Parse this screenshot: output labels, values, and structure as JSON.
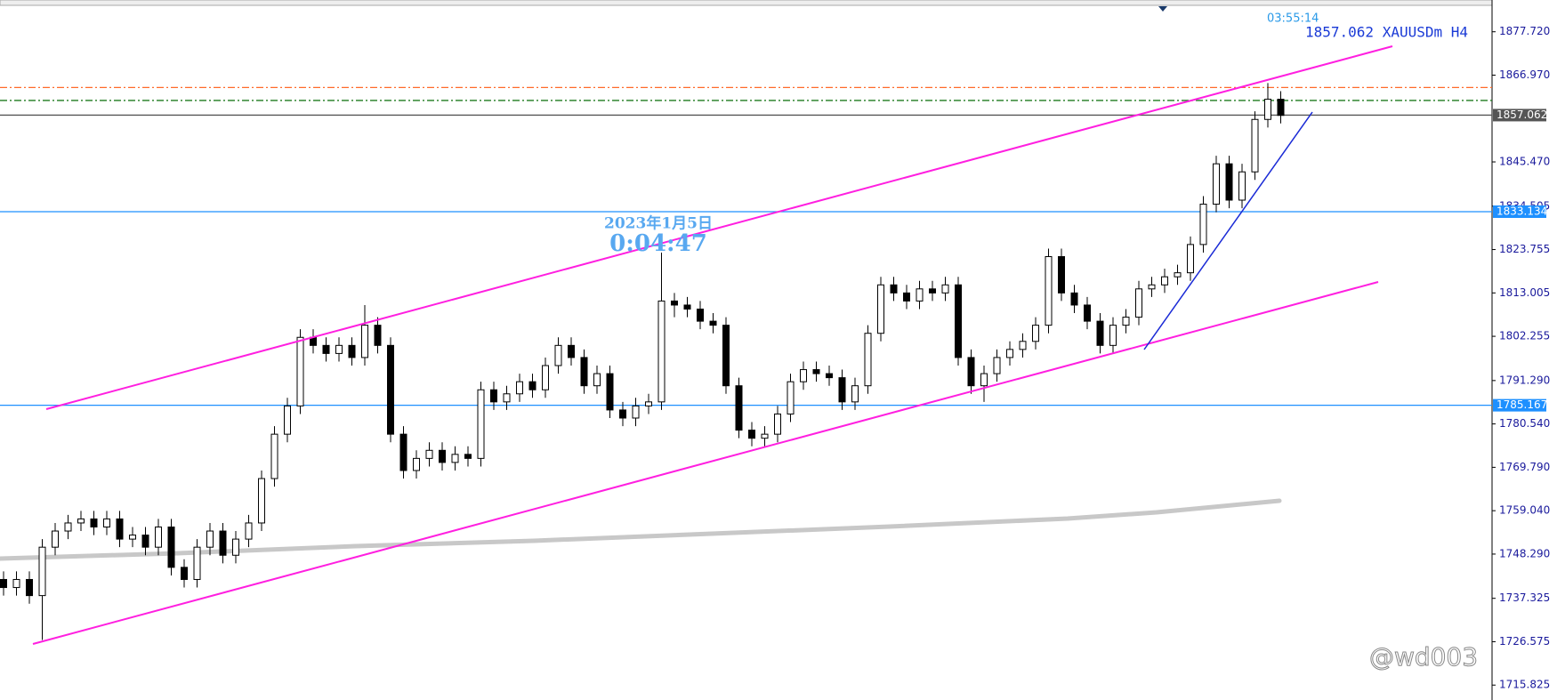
{
  "chart_data": {
    "type": "candlestick",
    "title": "1857.062 XAUUSDm H4",
    "timer": "03:55:14",
    "date_label": "2023年1月5日",
    "countdown": "0:04:47",
    "watermark": "@wd003",
    "ylim": [
      1712.13,
      1885.59
    ],
    "yticks": [
      {
        "value": 1877.72,
        "label": "1877.720"
      },
      {
        "value": 1866.97,
        "label": "1866.970"
      },
      {
        "value": 1845.47,
        "label": "1845.470"
      },
      1834.505,
      1823.755,
      1813.005,
      1802.255,
      {
        "value": 1791.29,
        "label": "1791.290"
      },
      {
        "value": 1780.54,
        "label": "1780.540"
      },
      {
        "value": 1769.79,
        "label": "1769.790"
      },
      {
        "value": 1759.04,
        "label": "1759.040"
      },
      {
        "value": 1748.29,
        "label": "1748.290"
      },
      1737.325,
      1726.575,
      1715.825
    ],
    "levels": [
      {
        "value": 1857.062,
        "label": "1857.062",
        "color": "#555555",
        "style": "solid"
      },
      {
        "value": 1833.134,
        "label": "1833.134",
        "color": "#1e90ff",
        "style": "solid"
      },
      {
        "value": 1785.167,
        "label": "1785.167",
        "color": "#1e90ff",
        "style": "solid"
      },
      {
        "value": 1863.9,
        "color": "#ff6a2a",
        "style": "dashdot"
      },
      {
        "value": 1860.7,
        "color": "#1f7a1f",
        "style": "dashdot"
      }
    ],
    "up_color": "#ffffff",
    "down_color": "#000000",
    "open": [
      1742,
      1740,
      1742,
      1738,
      1750,
      1754,
      1756,
      1757,
      1755,
      1757,
      1752,
      1753,
      1750,
      1755,
      1745,
      1742,
      1750,
      1754,
      1748,
      1752,
      1756,
      1767,
      1778,
      1785,
      1802,
      1800,
      1798,
      1800,
      1797,
      1805,
      1800,
      1778,
      1769,
      1772,
      1774,
      1771,
      1773,
      1772,
      1789,
      1786,
      1788,
      1791,
      1789,
      1795,
      1800,
      1797,
      1790,
      1793,
      1784,
      1782,
      1785,
      1786,
      1811,
      1810,
      1809,
      1806,
      1805,
      1790,
      1779,
      1777,
      1778,
      1783,
      1791,
      1794,
      1793,
      1792,
      1786,
      1790,
      1803,
      1815,
      1813,
      1811,
      1814,
      1813,
      1815,
      1797,
      1790,
      1793,
      1797,
      1799,
      1801,
      1805,
      1822,
      1813,
      1810,
      1806,
      1800,
      1805,
      1807,
      1814,
      1815,
      1817,
      1818,
      1825,
      1835,
      1845,
      1836,
      1843,
      1856,
      1861
    ],
    "high": [
      1744,
      1744,
      1744,
      1752,
      1756,
      1758,
      1759,
      1759,
      1759,
      1759,
      1755,
      1755,
      1757,
      1757,
      1747,
      1752,
      1756,
      1756,
      1754,
      1758,
      1769,
      1780,
      1787,
      1804,
      1804,
      1802,
      1802,
      1802,
      1810,
      1807,
      1802,
      1780,
      1774,
      1776,
      1776,
      1775,
      1775,
      1791,
      1791,
      1790,
      1793,
      1793,
      1797,
      1802,
      1802,
      1799,
      1795,
      1795,
      1786,
      1787,
      1788,
      1823,
      1813,
      1812,
      1811,
      1808,
      1807,
      1792,
      1781,
      1780,
      1785,
      1793,
      1796,
      1796,
      1795,
      1794,
      1792,
      1805,
      1817,
      1817,
      1815,
      1816,
      1816,
      1817,
      1817,
      1799,
      1795,
      1799,
      1801,
      1803,
      1807,
      1824,
      1824,
      1815,
      1812,
      1808,
      1807,
      1809,
      1816,
      1817,
      1819,
      1820,
      1827,
      1837,
      1847,
      1847,
      1845,
      1858,
      1865,
      1863
    ],
    "low": [
      1738,
      1738,
      1736,
      1727,
      1748,
      1752,
      1754,
      1753,
      1753,
      1750,
      1750,
      1748,
      1748,
      1743,
      1740,
      1740,
      1748,
      1746,
      1746,
      1750,
      1754,
      1765,
      1776,
      1783,
      1798,
      1796,
      1796,
      1795,
      1795,
      1798,
      1776,
      1767,
      1767,
      1770,
      1769,
      1769,
      1770,
      1770,
      1784,
      1784,
      1786,
      1787,
      1787,
      1793,
      1795,
      1788,
      1788,
      1782,
      1780,
      1780,
      1783,
      1784,
      1807,
      1807,
      1804,
      1803,
      1788,
      1777,
      1775,
      1775,
      1776,
      1781,
      1789,
      1791,
      1790,
      1784,
      1784,
      1788,
      1801,
      1811,
      1809,
      1809,
      1811,
      1811,
      1795,
      1788,
      1786,
      1791,
      1795,
      1797,
      1799,
      1803,
      1811,
      1808,
      1804,
      1798,
      1798,
      1803,
      1805,
      1812,
      1813,
      1815,
      1816,
      1823,
      1833,
      1834,
      1834,
      1841,
      1854,
      1855
    ],
    "close": [
      1740,
      1742,
      1738,
      1750,
      1754,
      1756,
      1757,
      1755,
      1757,
      1752,
      1753,
      1750,
      1755,
      1745,
      1742,
      1750,
      1754,
      1748,
      1752,
      1756,
      1767,
      1778,
      1785,
      1802,
      1800,
      1798,
      1800,
      1797,
      1805,
      1800,
      1778,
      1769,
      1772,
      1774,
      1771,
      1773,
      1772,
      1789,
      1786,
      1788,
      1791,
      1789,
      1795,
      1800,
      1797,
      1790,
      1793,
      1784,
      1782,
      1785,
      1786,
      1811,
      1810,
      1809,
      1806,
      1805,
      1790,
      1779,
      1777,
      1778,
      1783,
      1791,
      1794,
      1793,
      1792,
      1786,
      1790,
      1803,
      1815,
      1813,
      1811,
      1814,
      1813,
      1815,
      1797,
      1790,
      1793,
      1797,
      1799,
      1801,
      1805,
      1822,
      1813,
      1810,
      1806,
      1800,
      1805,
      1807,
      1814,
      1815,
      1817,
      1818,
      1825,
      1835,
      1845,
      1836,
      1843,
      1856,
      1861,
      1857
    ]
  }
}
